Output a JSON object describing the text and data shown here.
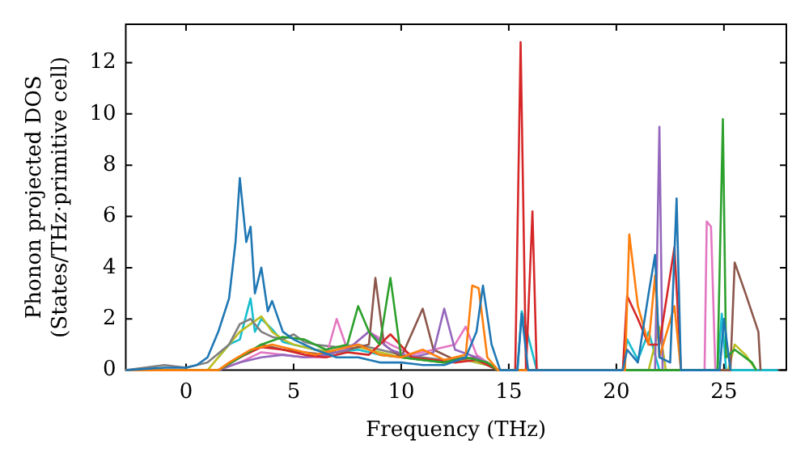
{
  "chart_data": {
    "type": "line",
    "xlabel": "Frequency (THz)",
    "ylabel": "Phonon projected DOS\n(States/THz·primitive cell)",
    "xlim": [
      -2.8,
      27.9
    ],
    "xticks": [
      0,
      5,
      10,
      15,
      20,
      25
    ],
    "ylim": [
      0,
      13.5
    ],
    "yticks": [
      0,
      2,
      4,
      6,
      8,
      10,
      12
    ],
    "grid": false,
    "legend": false,
    "marker": "none",
    "line_style": "solid",
    "series": [
      {
        "color": "#1f77b4",
        "x": [
          -2.8,
          -1,
          0,
          0.5,
          1,
          1.5,
          2,
          2.3,
          2.5,
          2.8,
          3,
          3.2,
          3.5,
          3.8,
          4,
          4.5,
          5,
          6,
          7,
          8,
          9,
          10,
          11,
          12,
          13,
          13.5,
          13.8,
          14.2,
          14.6,
          15.4,
          15.6,
          15.9,
          20.3,
          20.5,
          21,
          21.5,
          21.8,
          22,
          22.5,
          22.8,
          23,
          24.8,
          25,
          25.3
        ],
        "values": [
          0,
          0.1,
          0.1,
          0.2,
          0.5,
          1.5,
          2.8,
          5,
          7.5,
          5,
          5.6,
          3,
          4,
          2.3,
          2.7,
          1.5,
          1.2,
          0.8,
          0.5,
          0.5,
          0.3,
          0.3,
          0.2,
          0.2,
          0.5,
          1.5,
          3.3,
          1,
          0,
          0,
          2.2,
          0,
          0,
          0.8,
          0.3,
          3,
          4.5,
          0.5,
          0.3,
          6.7,
          0,
          0,
          2,
          0
        ]
      },
      {
        "color": "#ff7f0e",
        "x": [
          -2.8,
          1.5,
          2,
          3,
          4,
          5,
          6,
          7,
          8,
          9,
          10,
          11,
          12,
          13,
          13.3,
          13.6,
          14,
          14.5,
          20.4,
          20.6,
          21,
          21.5,
          21.8,
          22,
          22.7,
          23
        ],
        "values": [
          0,
          0,
          0.3,
          0.8,
          1,
          0.8,
          0.6,
          0.8,
          1,
          0.6,
          0.5,
          0.8,
          0.4,
          0.6,
          3.3,
          3.2,
          0.5,
          0,
          0,
          5.3,
          2.5,
          1,
          3.7,
          0.5,
          2.5,
          0
        ]
      },
      {
        "color": "#2ca02c",
        "x": [
          -2.8,
          1.5,
          2.5,
          3.5,
          4.5,
          5.5,
          6.5,
          7.5,
          8,
          8.5,
          9,
          9.5,
          10,
          11,
          12,
          13,
          14,
          14.5,
          24.7,
          24.95,
          25.1,
          25.5,
          26.3,
          26.5
        ],
        "values": [
          0,
          0,
          0.5,
          1,
          1.3,
          1.2,
          0.8,
          1,
          2.5,
          1.5,
          1,
          3.6,
          0.5,
          0.4,
          0.3,
          0.5,
          0.3,
          0,
          0,
          9.8,
          0.5,
          0.8,
          0.3,
          0
        ]
      },
      {
        "color": "#d62728",
        "x": [
          -2.8,
          1.5,
          2.5,
          3.5,
          4.5,
          5.5,
          6.5,
          7.5,
          8.5,
          9.5,
          10.5,
          11.5,
          12.5,
          13.5,
          14.5,
          15.3,
          15.55,
          15.8,
          16.1,
          16.3,
          20.3,
          20.5,
          21,
          21.5,
          22,
          22.7,
          23
        ],
        "values": [
          0,
          0,
          0.5,
          0.9,
          0.8,
          0.6,
          0.5,
          0.7,
          0.6,
          1.4,
          0.5,
          0.4,
          0.3,
          0.4,
          0,
          0,
          12.8,
          0,
          6.2,
          0,
          0,
          2.9,
          2,
          1,
          1,
          4.8,
          0
        ]
      },
      {
        "color": "#9467bd",
        "x": [
          -2.8,
          1.5,
          2.5,
          3.5,
          4.5,
          5.5,
          6.5,
          7.5,
          8.5,
          9.5,
          10.5,
          11.5,
          12,
          12.5,
          13.5,
          14.5,
          21.8,
          22,
          22.15
        ],
        "values": [
          0,
          0,
          0.3,
          0.5,
          0.6,
          0.5,
          0.6,
          0.8,
          1.5,
          0.8,
          0.5,
          0.7,
          2.4,
          0.8,
          0.5,
          0,
          0,
          9.5,
          0
        ]
      },
      {
        "color": "#8c564b",
        "x": [
          -2.8,
          1.5,
          2.5,
          3.5,
          4.5,
          5.5,
          6.5,
          7.5,
          8.5,
          8.8,
          9.2,
          10,
          11,
          11.5,
          12.5,
          13.5,
          14.5,
          25.3,
          25.5,
          26,
          26.6,
          26.7
        ],
        "values": [
          0,
          0,
          0.5,
          1,
          0.8,
          0.7,
          0.6,
          0.8,
          1,
          3.6,
          1,
          0.5,
          2.4,
          0.8,
          0.4,
          0.5,
          0,
          0,
          4.2,
          3,
          1.5,
          0
        ]
      },
      {
        "color": "#e377c2",
        "x": [
          -2.8,
          1.5,
          2.5,
          3.5,
          4.5,
          5.5,
          6.5,
          7,
          7.5,
          8.5,
          9.5,
          10.5,
          11.5,
          12.5,
          13,
          13.5,
          14.5,
          24.1,
          24.2,
          24.4,
          24.6
        ],
        "values": [
          0,
          0,
          0.3,
          0.7,
          0.6,
          0.5,
          0.5,
          2,
          0.8,
          1.5,
          1,
          0.6,
          0.8,
          1,
          1.7,
          0.6,
          0,
          0,
          5.8,
          5.6,
          0
        ]
      },
      {
        "color": "#7f7f7f",
        "x": [
          -2.8,
          -1,
          0,
          1,
          2,
          2.5,
          3,
          3.5,
          4,
          4.5,
          5,
          5.5,
          6,
          7,
          8,
          9,
          10,
          11,
          12,
          13,
          14,
          14.5
        ],
        "values": [
          0,
          0.2,
          0.1,
          0.3,
          1,
          1.8,
          2,
          1.5,
          1.3,
          1.2,
          1.4,
          1.1,
          1,
          0.9,
          1,
          0.8,
          0.6,
          0.5,
          0.4,
          0.5,
          0.3,
          0
        ]
      },
      {
        "color": "#bcbd22",
        "x": [
          -2.8,
          1,
          2,
          2.5,
          3,
          3.5,
          4,
          4.5,
          5,
          6,
          7,
          8,
          9,
          10,
          11,
          12,
          13,
          14,
          14.5,
          21.5,
          22,
          22.3,
          25.2,
          25.5,
          26,
          26.5
        ],
        "values": [
          0,
          0,
          1,
          1.5,
          1.8,
          2.1,
          1.5,
          1.2,
          1,
          0.8,
          0.7,
          0.9,
          0.7,
          0.5,
          0.4,
          0.3,
          0.4,
          0.2,
          0,
          0,
          1.7,
          0,
          0,
          1,
          0.6,
          0
        ]
      },
      {
        "color": "#17becf",
        "x": [
          1.5,
          2,
          2.5,
          3,
          3.2,
          3.5,
          4,
          4.5,
          5,
          6,
          7,
          8,
          9,
          10,
          11,
          12,
          13,
          14,
          14.5,
          15.4,
          15.6,
          16,
          16.3,
          20.3,
          20.5,
          21,
          21.5,
          22,
          24.7,
          24.9,
          25.1,
          27.5
        ],
        "values": [
          0.5,
          1,
          1.2,
          2.8,
          1.5,
          2,
          1.6,
          1.1,
          1,
          0.8,
          0.7,
          0.8,
          0.6,
          0.5,
          0.4,
          0.3,
          0.4,
          0.2,
          0,
          0,
          2.3,
          1,
          0,
          0,
          1.2,
          0.4,
          1.5,
          0,
          0,
          2.2,
          0,
          0
        ]
      }
    ]
  }
}
